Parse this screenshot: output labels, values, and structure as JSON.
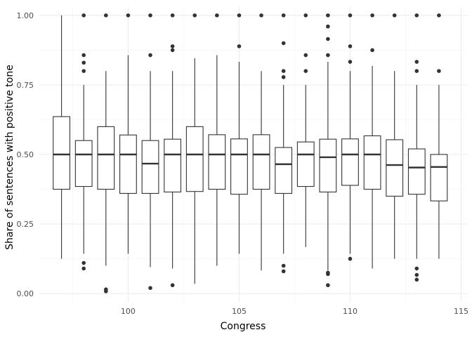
{
  "chart_data": {
    "type": "boxplot",
    "title": "",
    "xlabel": "Congress",
    "ylabel": "Share of sentences with positive tone",
    "xlim": [
      96,
      115.3
    ],
    "ylim": [
      -0.03,
      1.03
    ],
    "x_ticks": [
      100,
      105,
      110,
      115
    ],
    "x_tick_labels": [
      "100",
      "105",
      "110",
      "115"
    ],
    "y_ticks": [
      0.0,
      0.25,
      0.5,
      0.75,
      1.0
    ],
    "y_tick_labels": [
      "0.00",
      "0.25",
      "0.50",
      "0.75",
      "1.00"
    ],
    "grid": true,
    "legend": "none",
    "colors": {
      "box_fill": "#ffffff",
      "box_stroke": "#333333",
      "grid": "#ebebeb"
    },
    "boxes": [
      {
        "congress": 97,
        "whisker_low": 0.125,
        "q1": 0.375,
        "median": 0.5,
        "q3": 0.636,
        "whisker_high": 1.0,
        "outliers": []
      },
      {
        "congress": 98,
        "whisker_low": 0.143,
        "q1": 0.385,
        "median": 0.5,
        "q3": 0.55,
        "whisker_high": 0.75,
        "outliers": [
          0.09,
          0.11,
          0.8,
          0.83,
          0.857,
          1.0
        ]
      },
      {
        "congress": 99,
        "whisker_low": 0.1,
        "q1": 0.375,
        "median": 0.5,
        "q3": 0.6,
        "whisker_high": 0.8,
        "outliers": [
          0.008,
          0.015,
          1.0
        ]
      },
      {
        "congress": 100,
        "whisker_low": 0.143,
        "q1": 0.36,
        "median": 0.5,
        "q3": 0.57,
        "whisker_high": 0.857,
        "outliers": [
          1.0
        ]
      },
      {
        "congress": 101,
        "whisker_low": 0.095,
        "q1": 0.36,
        "median": 0.467,
        "q3": 0.55,
        "whisker_high": 0.8,
        "outliers": [
          0.02,
          0.857,
          1.0
        ]
      },
      {
        "congress": 102,
        "whisker_low": 0.09,
        "q1": 0.365,
        "median": 0.5,
        "q3": 0.555,
        "whisker_high": 0.8,
        "outliers": [
          0.03,
          0.875,
          0.889,
          1.0
        ]
      },
      {
        "congress": 103,
        "whisker_low": 0.035,
        "q1": 0.367,
        "median": 0.5,
        "q3": 0.6,
        "whisker_high": 0.846,
        "outliers": [
          1.0
        ]
      },
      {
        "congress": 104,
        "whisker_low": 0.1,
        "q1": 0.375,
        "median": 0.5,
        "q3": 0.571,
        "whisker_high": 0.857,
        "outliers": [
          1.0
        ]
      },
      {
        "congress": 105,
        "whisker_low": 0.143,
        "q1": 0.357,
        "median": 0.5,
        "q3": 0.556,
        "whisker_high": 0.833,
        "outliers": [
          0.889,
          1.0
        ]
      },
      {
        "congress": 106,
        "whisker_low": 0.083,
        "q1": 0.375,
        "median": 0.5,
        "q3": 0.571,
        "whisker_high": 0.8,
        "outliers": [
          1.0
        ]
      },
      {
        "congress": 107,
        "whisker_low": 0.143,
        "q1": 0.36,
        "median": 0.465,
        "q3": 0.525,
        "whisker_high": 0.75,
        "outliers": [
          0.08,
          0.1,
          0.778,
          0.8,
          0.9,
          1.0
        ]
      },
      {
        "congress": 108,
        "whisker_low": 0.167,
        "q1": 0.385,
        "median": 0.5,
        "q3": 0.545,
        "whisker_high": 0.75,
        "outliers": [
          0.8,
          0.857,
          1.0
        ]
      },
      {
        "congress": 109,
        "whisker_low": 0.083,
        "q1": 0.365,
        "median": 0.49,
        "q3": 0.555,
        "whisker_high": 0.833,
        "outliers": [
          0.03,
          0.07,
          0.075,
          0.857,
          0.915,
          0.96,
          1.0
        ]
      },
      {
        "congress": 110,
        "whisker_low": 0.143,
        "q1": 0.389,
        "median": 0.5,
        "q3": 0.556,
        "whisker_high": 0.8,
        "outliers": [
          0.125,
          0.833,
          0.889,
          1.0
        ]
      },
      {
        "congress": 111,
        "whisker_low": 0.09,
        "q1": 0.375,
        "median": 0.5,
        "q3": 0.567,
        "whisker_high": 0.818,
        "outliers": [
          0.875,
          1.0
        ]
      },
      {
        "congress": 112,
        "whisker_low": 0.125,
        "q1": 0.35,
        "median": 0.462,
        "q3": 0.553,
        "whisker_high": 0.8,
        "outliers": [
          1.0
        ]
      },
      {
        "congress": 113,
        "whisker_low": 0.125,
        "q1": 0.357,
        "median": 0.453,
        "q3": 0.52,
        "whisker_high": 0.75,
        "outliers": [
          0.05,
          0.067,
          0.09,
          0.8,
          0.833,
          1.0
        ]
      },
      {
        "congress": 114,
        "whisker_low": 0.125,
        "q1": 0.333,
        "median": 0.455,
        "q3": 0.5,
        "whisker_high": 0.75,
        "outliers": [
          0.8,
          1.0
        ]
      }
    ]
  }
}
